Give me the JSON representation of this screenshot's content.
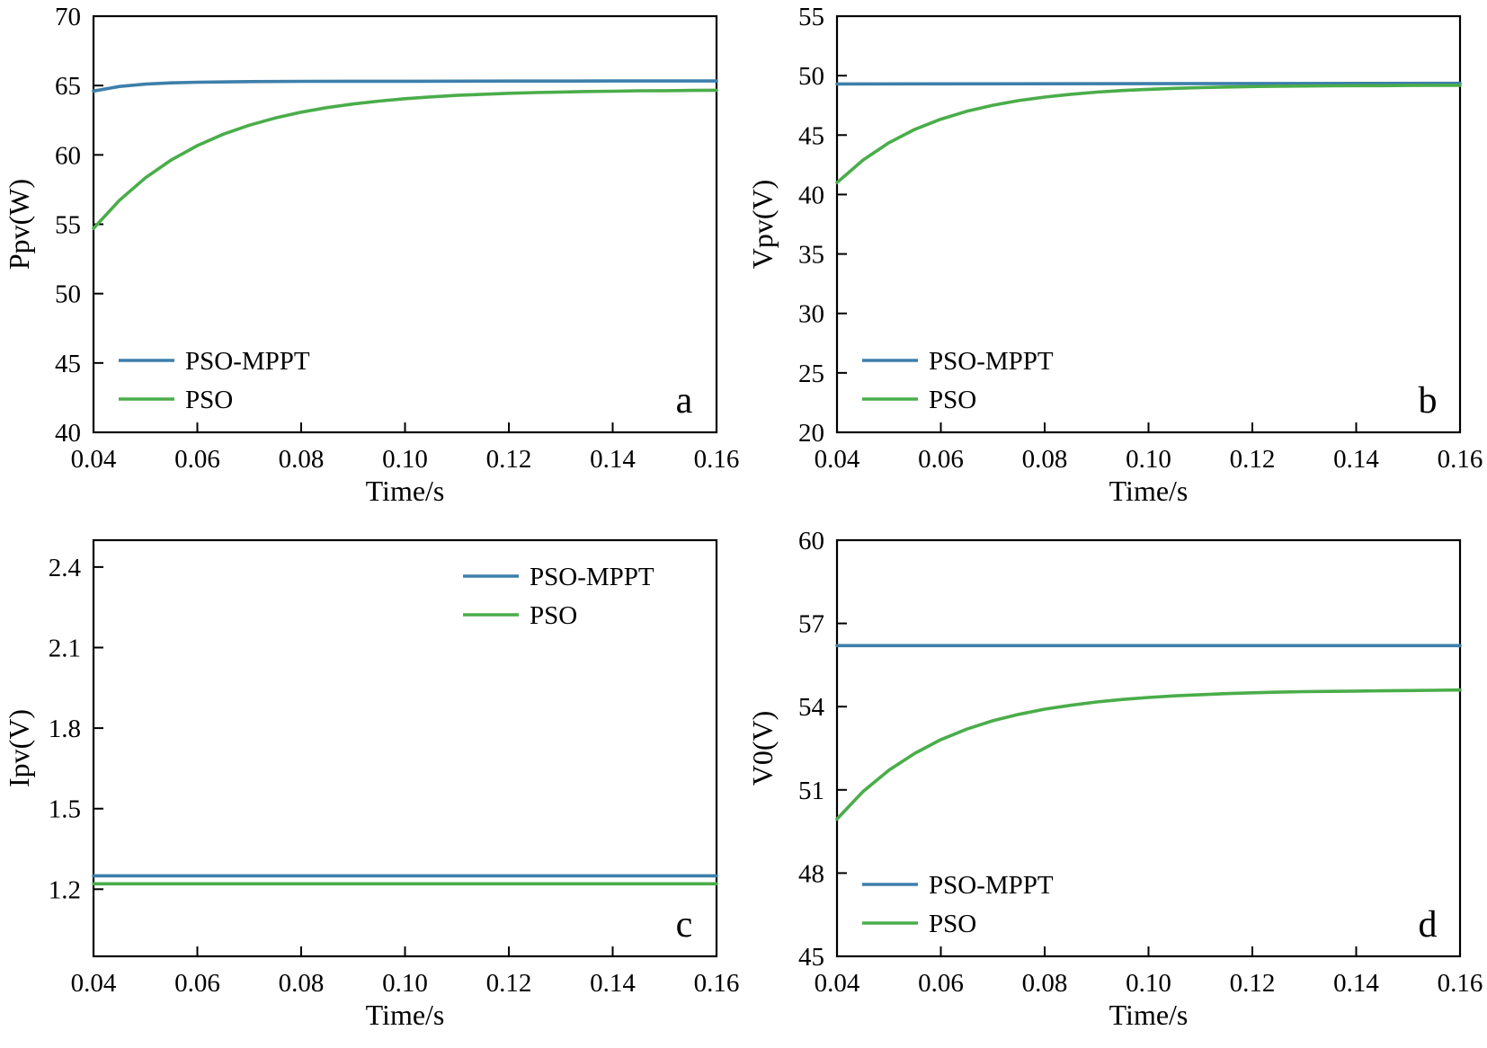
{
  "figure": {
    "background": "#ffffff"
  },
  "colors": {
    "pso_mppt": "#3d7fab",
    "pso": "#4aad4a",
    "axis": "#000000"
  },
  "chart_data": [
    {
      "id": "a",
      "type": "line",
      "panel_label": "a",
      "xlabel": "Time/s",
      "ylabel": "Ppv(W)",
      "xlim": [
        0.04,
        0.16
      ],
      "ylim": [
        40,
        70
      ],
      "xticks": [
        0.04,
        0.06,
        0.08,
        0.1,
        0.12,
        0.14,
        0.16
      ],
      "xtick_labels": [
        "0.04",
        "0.06",
        "0.08",
        "0.10",
        "0.12",
        "0.14",
        "0.16"
      ],
      "yticks": [
        40,
        45,
        50,
        55,
        60,
        65,
        70
      ],
      "ytick_labels": [
        "40",
        "45",
        "50",
        "55",
        "60",
        "65",
        "70"
      ],
      "grid": false,
      "legend": {
        "position": "bottom-left",
        "entries": [
          "PSO-MPPT",
          "PSO"
        ]
      },
      "series": [
        {
          "name": "PSO-MPPT",
          "color_key": "pso_mppt",
          "x": [
            0.04,
            0.045,
            0.05,
            0.055,
            0.06,
            0.07,
            0.08,
            0.1,
            0.12,
            0.14,
            0.16
          ],
          "y": [
            64.6,
            64.93,
            65.1,
            65.19,
            65.24,
            65.28,
            65.3,
            65.31,
            65.32,
            65.33,
            65.33
          ]
        },
        {
          "name": "PSO",
          "color_key": "pso",
          "x": [
            0.04,
            0.045,
            0.05,
            0.055,
            0.06,
            0.065,
            0.07,
            0.075,
            0.08,
            0.085,
            0.09,
            0.095,
            0.1,
            0.105,
            0.11,
            0.115,
            0.12,
            0.125,
            0.13,
            0.135,
            0.14,
            0.145,
            0.15,
            0.155,
            0.16
          ],
          "y": [
            54.7,
            56.73,
            58.35,
            59.64,
            60.67,
            61.49,
            62.14,
            62.66,
            63.08,
            63.41,
            63.67,
            63.88,
            64.05,
            64.18,
            64.29,
            64.37,
            64.44,
            64.49,
            64.53,
            64.57,
            64.59,
            64.62,
            64.63,
            64.65,
            64.66
          ]
        }
      ]
    },
    {
      "id": "b",
      "type": "line",
      "panel_label": "b",
      "xlabel": "Time/s",
      "ylabel": "Vpv(V)",
      "xlim": [
        0.04,
        0.16
      ],
      "ylim": [
        20,
        55
      ],
      "xticks": [
        0.04,
        0.06,
        0.08,
        0.1,
        0.12,
        0.14,
        0.16
      ],
      "xtick_labels": [
        "0.04",
        "0.06",
        "0.08",
        "0.10",
        "0.12",
        "0.14",
        "0.16"
      ],
      "yticks": [
        20,
        25,
        30,
        35,
        40,
        45,
        50,
        55
      ],
      "ytick_labels": [
        "20",
        "25",
        "30",
        "35",
        "40",
        "45",
        "50",
        "55"
      ],
      "grid": false,
      "legend": {
        "position": "bottom-left",
        "entries": [
          "PSO-MPPT",
          "PSO"
        ]
      },
      "series": [
        {
          "name": "PSO-MPPT",
          "color_key": "pso_mppt",
          "x": [
            0.04,
            0.16
          ],
          "y": [
            49.3,
            49.35
          ]
        },
        {
          "name": "PSO",
          "color_key": "pso",
          "x": [
            0.04,
            0.045,
            0.05,
            0.055,
            0.06,
            0.065,
            0.07,
            0.075,
            0.08,
            0.085,
            0.09,
            0.095,
            0.1,
            0.105,
            0.11,
            0.115,
            0.12,
            0.125,
            0.13,
            0.135,
            0.14,
            0.145,
            0.15,
            0.155,
            0.16
          ],
          "y": [
            41.0,
            42.9,
            44.36,
            45.48,
            46.34,
            47.0,
            47.51,
            47.9,
            48.2,
            48.43,
            48.61,
            48.75,
            48.85,
            48.93,
            48.99,
            49.04,
            49.08,
            49.11,
            49.13,
            49.14,
            49.16,
            49.16,
            49.17,
            49.18,
            49.19
          ]
        }
      ]
    },
    {
      "id": "c",
      "type": "line",
      "panel_label": "c",
      "xlabel": "Time/s",
      "ylabel": "Ipv(V)",
      "xlim": [
        0.04,
        0.16
      ],
      "ylim": [
        0.95,
        2.5
      ],
      "xticks": [
        0.04,
        0.06,
        0.08,
        0.1,
        0.12,
        0.14,
        0.16
      ],
      "xtick_labels": [
        "0.04",
        "0.06",
        "0.08",
        "0.10",
        "0.12",
        "0.14",
        "0.16"
      ],
      "yticks": [
        1.2,
        1.5,
        1.8,
        2.1,
        2.4
      ],
      "ytick_labels": [
        "1.2",
        "1.5",
        "1.8",
        "2.1",
        "2.4"
      ],
      "grid": false,
      "legend": {
        "position": "top-right",
        "entries": [
          "PSO-MPPT",
          "PSO"
        ]
      },
      "series": [
        {
          "name": "PSO-MPPT",
          "color_key": "pso_mppt",
          "x": [
            0.04,
            0.16
          ],
          "y": [
            1.25,
            1.25
          ]
        },
        {
          "name": "PSO",
          "color_key": "pso",
          "x": [
            0.04,
            0.16
          ],
          "y": [
            1.22,
            1.22
          ]
        }
      ]
    },
    {
      "id": "d",
      "type": "line",
      "panel_label": "d",
      "xlabel": "Time/s",
      "ylabel": "V0(V)",
      "xlim": [
        0.04,
        0.16
      ],
      "ylim": [
        45,
        60
      ],
      "xticks": [
        0.04,
        0.06,
        0.08,
        0.1,
        0.12,
        0.14,
        0.16
      ],
      "xtick_labels": [
        "0.04",
        "0.06",
        "0.08",
        "0.10",
        "0.12",
        "0.14",
        "0.16"
      ],
      "yticks": [
        45,
        48,
        51,
        54,
        57,
        60
      ],
      "ytick_labels": [
        "45",
        "48",
        "51",
        "54",
        "57",
        "60"
      ],
      "grid": false,
      "legend": {
        "position": "bottom-left",
        "entries": [
          "PSO-MPPT",
          "PSO"
        ]
      },
      "series": [
        {
          "name": "PSO-MPPT",
          "color_key": "pso_mppt",
          "x": [
            0.04,
            0.16
          ],
          "y": [
            56.2,
            56.2
          ]
        },
        {
          "name": "PSO",
          "color_key": "pso",
          "x": [
            0.04,
            0.045,
            0.05,
            0.055,
            0.06,
            0.065,
            0.07,
            0.075,
            0.08,
            0.085,
            0.09,
            0.095,
            0.1,
            0.105,
            0.11,
            0.115,
            0.12,
            0.125,
            0.13,
            0.135,
            0.14,
            0.145,
            0.15,
            0.155,
            0.16
          ],
          "y": [
            49.95,
            50.94,
            51.71,
            52.32,
            52.81,
            53.19,
            53.49,
            53.72,
            53.91,
            54.05,
            54.17,
            54.26,
            54.33,
            54.39,
            54.43,
            54.47,
            54.5,
            54.52,
            54.54,
            54.55,
            54.56,
            54.57,
            54.58,
            54.59,
            54.6
          ]
        }
      ]
    }
  ]
}
